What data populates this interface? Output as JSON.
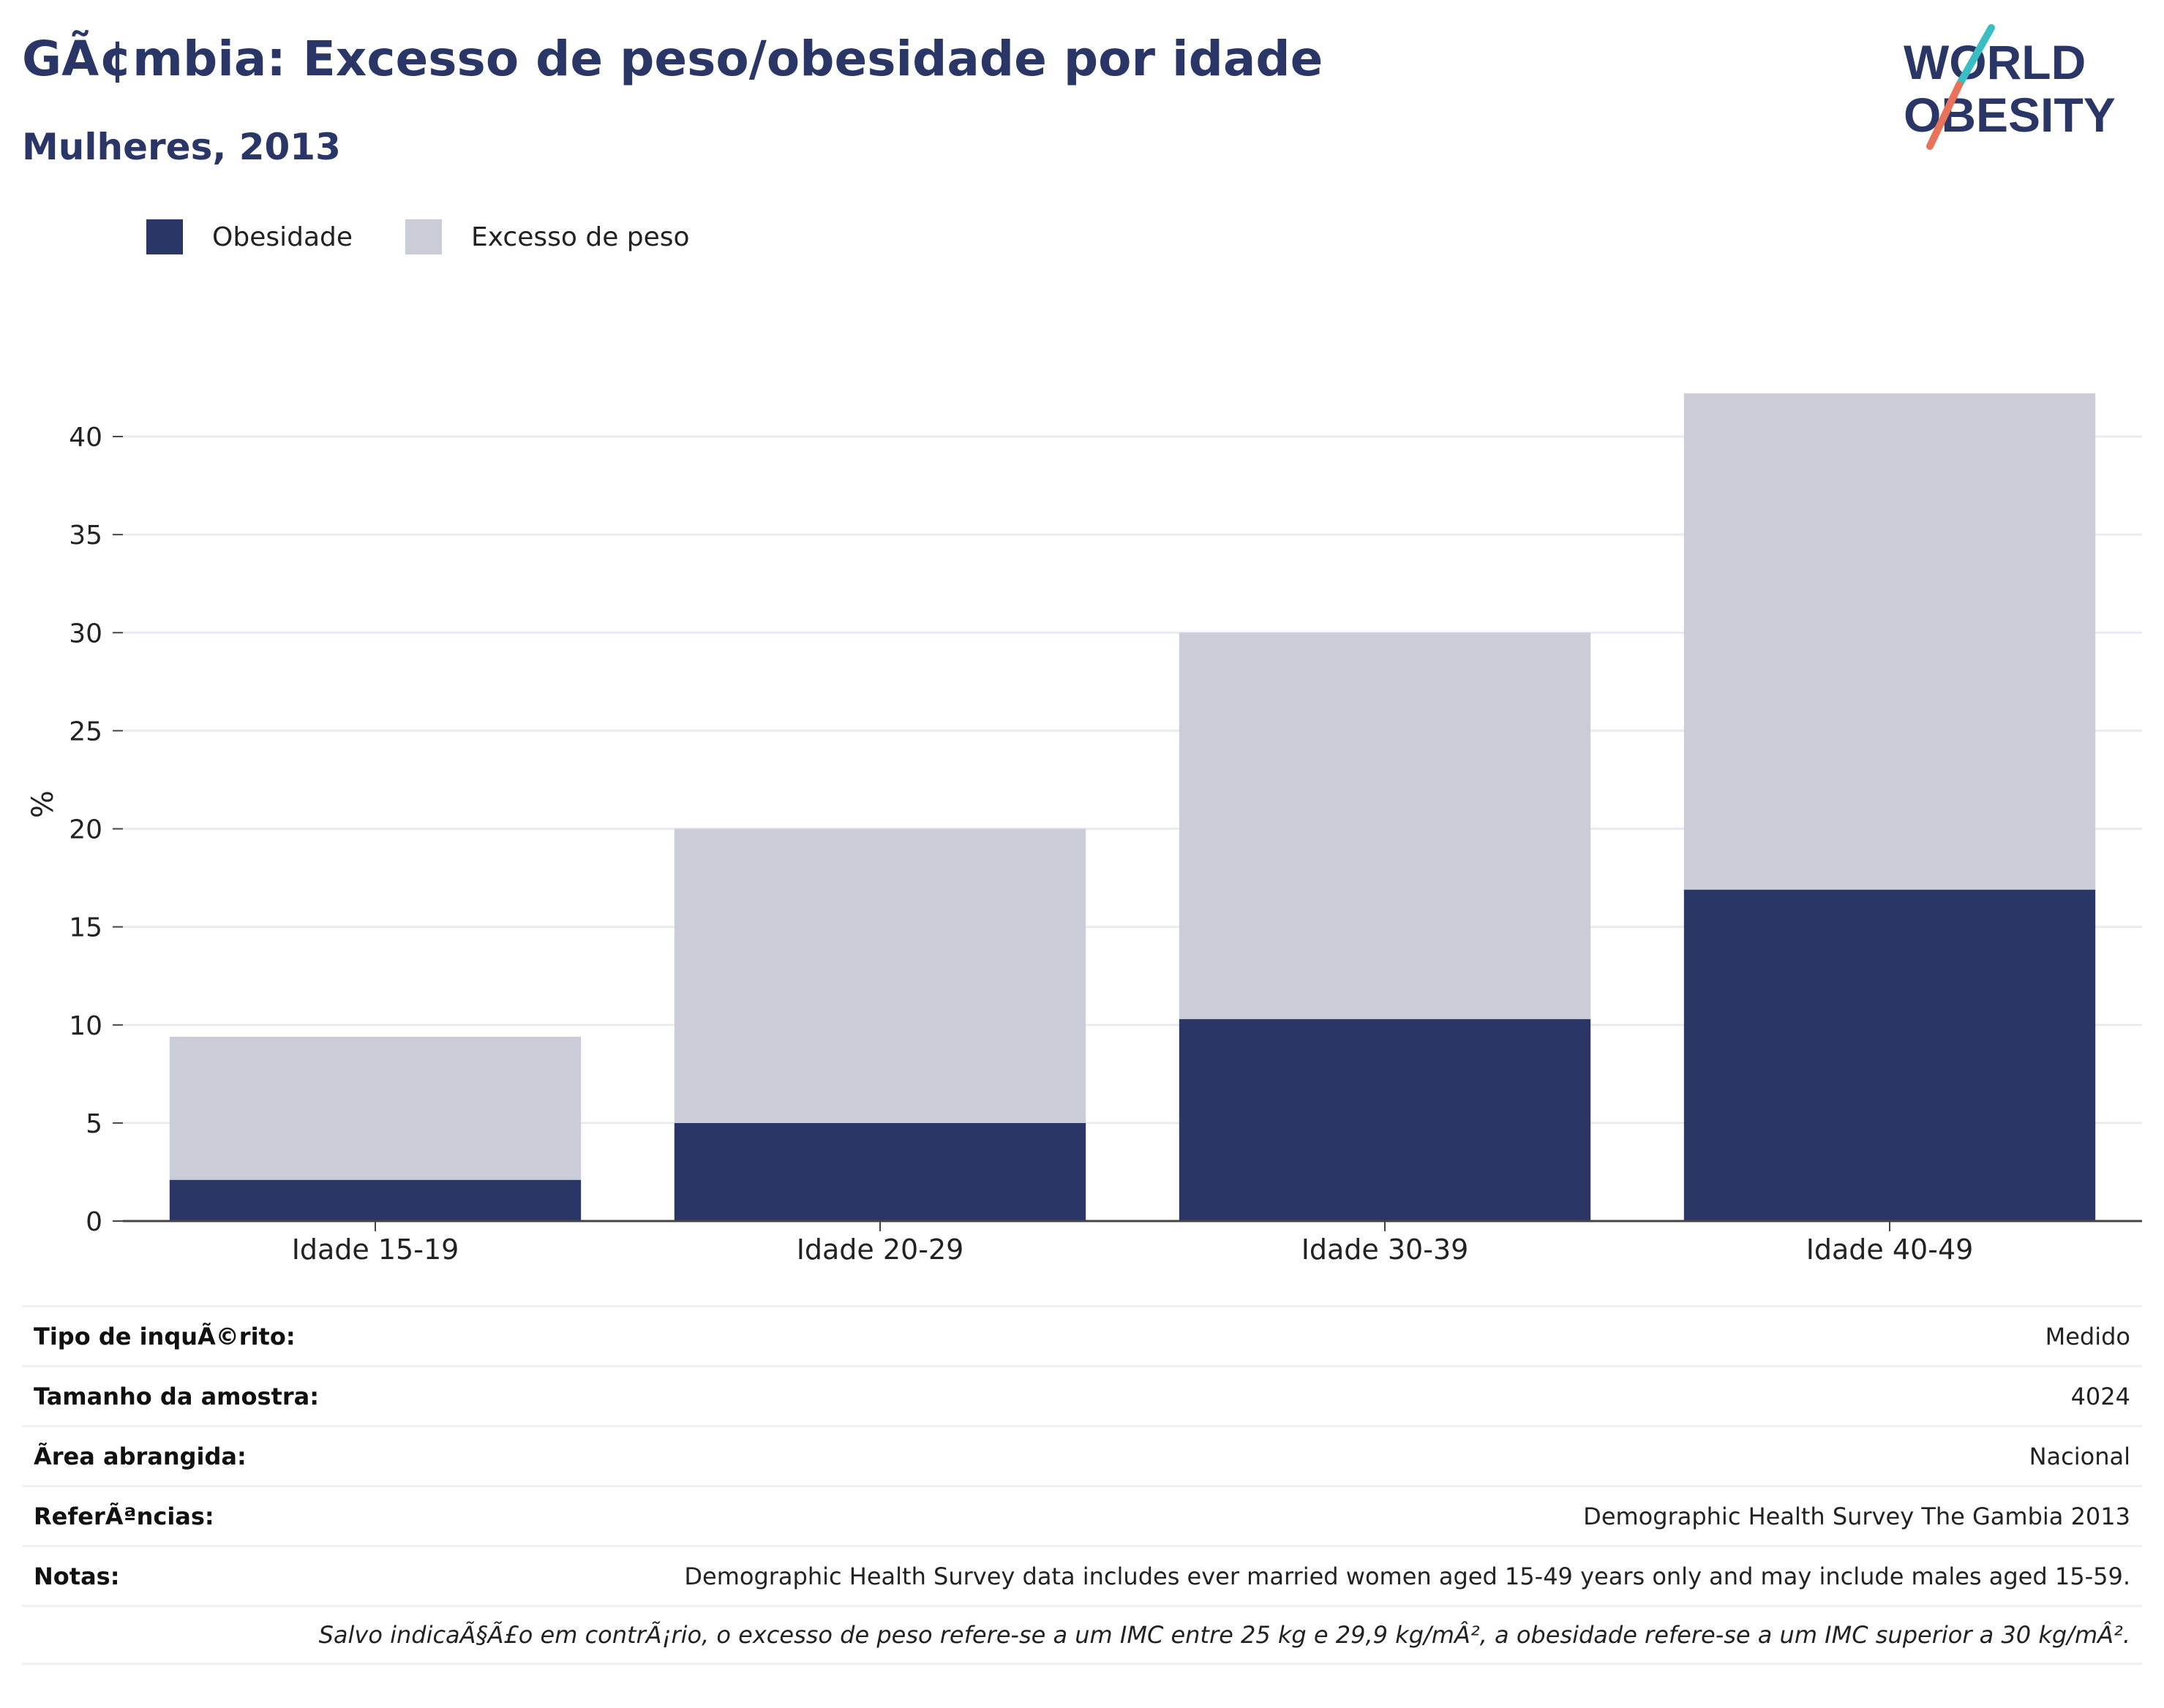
{
  "header": {
    "title": "GÃ¢mbia: Excesso de peso/obesidade por idade",
    "subtitle": "Mulheres, 2013"
  },
  "logo": {
    "line1": "WORLD",
    "line2": "OBESITY",
    "colors": {
      "text": "#2a3766",
      "slash_top": "#3bbec3",
      "slash_bottom": "#e8735a"
    }
  },
  "chart_data": {
    "type": "bar",
    "stacked": true,
    "categories": [
      "Idade 15-19",
      "Idade 20-29",
      "Idade 30-39",
      "Idade 40-49"
    ],
    "series": [
      {
        "name": "Obesidade",
        "values": [
          2.1,
          5.0,
          10.3,
          16.9
        ],
        "color": "#2a3766"
      },
      {
        "name": "Excesso de peso",
        "values": [
          7.3,
          15.0,
          19.7,
          25.3
        ],
        "color": "#cacdd8"
      }
    ],
    "ylabel": "%",
    "ylim": [
      0,
      42.5
    ],
    "yticks": [
      0,
      5,
      10,
      15,
      20,
      25,
      30,
      35,
      40
    ],
    "grid": true,
    "legend_position": "top-left"
  },
  "info": {
    "rows": [
      {
        "label": "Tipo de inquÃ©rito:",
        "value": "Medido"
      },
      {
        "label": "Tamanho da amostra:",
        "value": "4024"
      },
      {
        "label": "Ã\u001frea abrangida:",
        "value": "Nacional"
      },
      {
        "label": "ReferÃªncias:",
        "value": "Demographic Health Survey The Gambia 2013"
      },
      {
        "label": "Notas:",
        "value": "Demographic Health Survey data includes ever married women aged 15-49 years only and may include males aged 15-59."
      }
    ],
    "footnote": "Salvo indicaÃ§Ã£o em contrÃ¡rio, o excesso de peso refere-se a um IMC entre 25 kg e 29,9 kg/mÂ², a obesidade refere-se a um IMC superior a 30 kg/mÂ²."
  }
}
